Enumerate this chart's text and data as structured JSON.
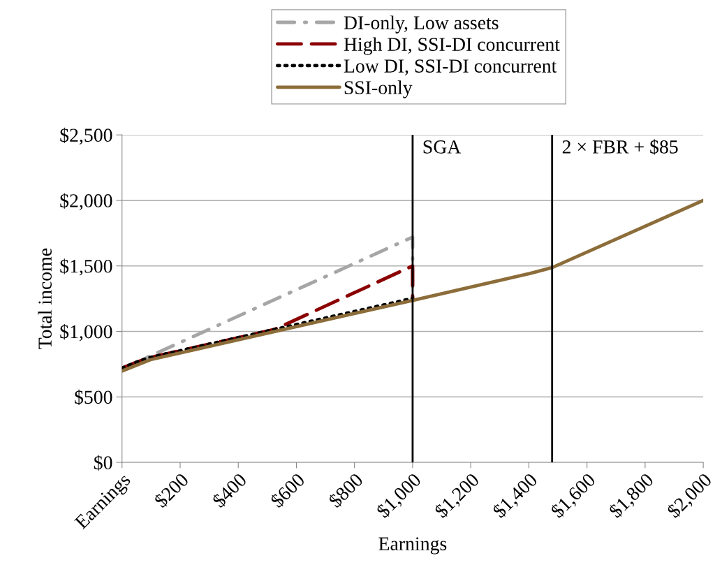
{
  "chart_data": {
    "type": "line",
    "xlabel": "Earnings",
    "ylabel": "Total income",
    "xlim": [
      0,
      2000
    ],
    "xticks": [
      {
        "value": 0,
        "label": "Earnings"
      },
      {
        "value": 200,
        "label": "$200"
      },
      {
        "value": 400,
        "label": "$400"
      },
      {
        "value": 600,
        "label": "$600"
      },
      {
        "value": 800,
        "label": "$800"
      },
      {
        "value": 1000,
        "label": "$1,000"
      },
      {
        "value": 1200,
        "label": "$1,200"
      },
      {
        "value": 1400,
        "label": "$1,400"
      },
      {
        "value": 1600,
        "label": "$1,600"
      },
      {
        "value": 1800,
        "label": "$1,800"
      },
      {
        "value": 2000,
        "label": "$2,000"
      }
    ],
    "ylim": [
      0,
      2500
    ],
    "yticks": [
      {
        "value": 0,
        "label": "$0"
      },
      {
        "value": 500,
        "label": "$500"
      },
      {
        "value": 1000,
        "label": "$1,000"
      },
      {
        "value": 1500,
        "label": "$1,500"
      },
      {
        "value": 2000,
        "label": "$2,000"
      },
      {
        "value": 2500,
        "label": "$2,500"
      }
    ],
    "grid": "y",
    "legend": "top",
    "marker": "none",
    "series": [
      {
        "name": "DI-only, Low assets",
        "color": "#a6a6a6",
        "line_style": "dashdot",
        "x": [
          0,
          85,
          1000,
          1000
        ],
        "values": [
          720,
          800,
          1720,
          1237
        ]
      },
      {
        "name": "High DI, SSI-DI concurrent",
        "color": "#8b0000",
        "line_style": "dashed",
        "x": [
          0,
          85,
          525,
          1000,
          1000
        ],
        "values": [
          720,
          795,
          1015,
          1500,
          1237
        ]
      },
      {
        "name": "Low DI, SSI-DI concurrent",
        "color": "#000000",
        "line_style": "dotted",
        "x": [
          0,
          85,
          1000,
          1000
        ],
        "values": [
          720,
          795,
          1252,
          1237
        ]
      },
      {
        "name": "SSI-only",
        "color": "#8c6d3a",
        "line_style": "solid",
        "x": [
          0,
          98,
          1000,
          1400,
          1480,
          2000
        ],
        "values": [
          698,
          784,
          1237,
          1440,
          1487,
          2000
        ]
      }
    ],
    "ref_lines": [
      {
        "axis": "x",
        "value": 1000,
        "label": "SGA",
        "color": "#000000"
      },
      {
        "axis": "x",
        "value": 1480,
        "label": "2 × FBR + $85",
        "color": "#000000"
      }
    ]
  }
}
